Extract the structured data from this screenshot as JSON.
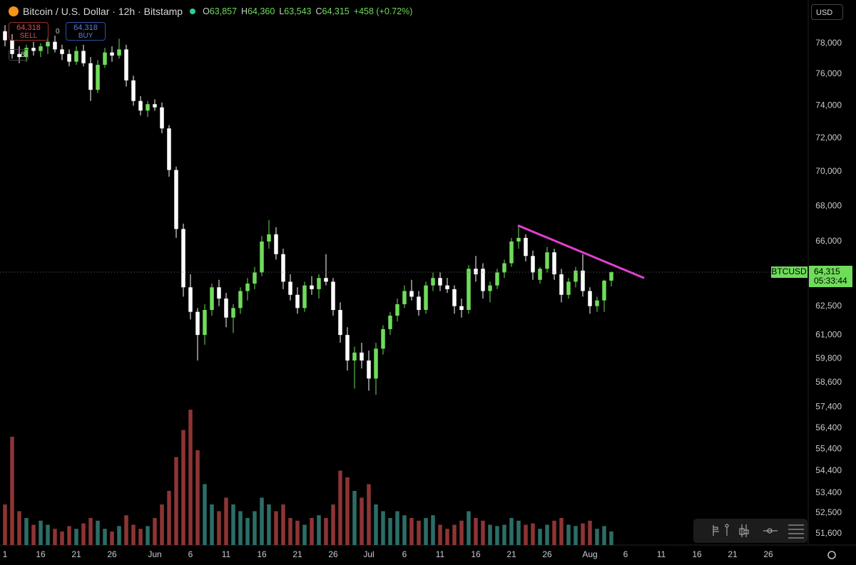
{
  "header": {
    "title": "Bitcoin / U.S. Dollar · 12h · Bitstamp",
    "ohlc": [
      {
        "key": "O",
        "value": "63,857"
      },
      {
        "key": "H",
        "value": "64,360"
      },
      {
        "key": "L",
        "value": "63,543"
      },
      {
        "key": "C",
        "value": "64,315"
      }
    ],
    "change": "+458 (+0.72%)",
    "sell": {
      "price": "64,318",
      "label": "SELL"
    },
    "spread": "0",
    "buy": {
      "price": "64,318",
      "label": "BUY"
    },
    "indicators": "8",
    "currency": "USD"
  },
  "chart_data": {
    "type": "candlestick",
    "log_scale": true,
    "grid": false,
    "up_color": "#6fdc5a",
    "down_color": "#ffffff",
    "volume_up_color": "#2c6e67",
    "volume_down_color": "#8e3434",
    "x": [
      11,
      12,
      13,
      14,
      15,
      16,
      17,
      18,
      19,
      20,
      21,
      22,
      23,
      24,
      25,
      26,
      27,
      28,
      29,
      30,
      31,
      32,
      33,
      34,
      35,
      36,
      37,
      38,
      39,
      40,
      41,
      42,
      43,
      44,
      45,
      46,
      47,
      48,
      49,
      50,
      51,
      52,
      53,
      54,
      55,
      56,
      57,
      58,
      59,
      60,
      61,
      62,
      63,
      64,
      65,
      66,
      67,
      68,
      69,
      70,
      71,
      72,
      73,
      74,
      75,
      76,
      77,
      78,
      79,
      80,
      81,
      82,
      83,
      84,
      85,
      86,
      87,
      88,
      89,
      90,
      91,
      92,
      93,
      94,
      95,
      96
    ],
    "open": [
      78800,
      78200,
      77300,
      77100,
      77700,
      77500,
      77800,
      78100,
      77600,
      77300,
      76800,
      77500,
      76700,
      75000,
      76600,
      77400,
      77200,
      77600,
      75600,
      74300,
      73700,
      74100,
      73900,
      72600,
      70100,
      66700,
      63500,
      62200,
      61000,
      62300,
      63500,
      62900,
      61900,
      62400,
      63300,
      63700,
      64300,
      66000,
      66400,
      65300,
      63800,
      63100,
      62400,
      63600,
      63400,
      64000,
      63800,
      62300,
      61000,
      59700,
      60100,
      59700,
      58800,
      60300,
      61300,
      62000,
      62600,
      63300,
      63000,
      62300,
      63600,
      64000,
      63600,
      63400,
      62500,
      62300,
      64500,
      64500,
      63300,
      63600,
      64300,
      64800,
      66000,
      66200,
      65200,
      63900,
      64500,
      65400,
      64200,
      63100,
      63800,
      64400,
      63300,
      62500,
      62800,
      63857
    ],
    "high": [
      79200,
      78600,
      77800,
      77900,
      78100,
      78000,
      78400,
      78500,
      77900,
      77600,
      77800,
      77900,
      77100,
      76900,
      77700,
      77800,
      78300,
      77900,
      75900,
      74600,
      74300,
      74400,
      74200,
      72800,
      70300,
      67000,
      64200,
      62400,
      62600,
      63700,
      63900,
      63200,
      62600,
      63500,
      64000,
      64600,
      66300,
      67200,
      66800,
      65600,
      64200,
      63500,
      63800,
      64100,
      64200,
      65300,
      64000,
      62700,
      61400,
      60400,
      60600,
      60200,
      60600,
      61500,
      62200,
      62900,
      63600,
      63900,
      63300,
      63800,
      64300,
      64300,
      64000,
      63600,
      62900,
      64700,
      65200,
      64800,
      63800,
      64500,
      65000,
      66200,
      66900,
      66400,
      65500,
      64600,
      65700,
      65600,
      64500,
      64000,
      64600,
      65300,
      63500,
      63000,
      63900,
      64360
    ],
    "low": [
      77800,
      77000,
      76700,
      76800,
      77200,
      77100,
      77300,
      77400,
      76900,
      76500,
      76600,
      76500,
      74300,
      74800,
      76400,
      76800,
      77000,
      75200,
      74000,
      73400,
      73300,
      73700,
      72300,
      69700,
      66200,
      63000,
      61800,
      59700,
      60500,
      62000,
      62500,
      61400,
      61100,
      62100,
      62800,
      63400,
      64100,
      65600,
      65000,
      63400,
      62800,
      62100,
      62200,
      63100,
      62900,
      63600,
      62000,
      60600,
      59200,
      58300,
      59300,
      58200,
      58000,
      60000,
      61000,
      61700,
      62400,
      62800,
      62000,
      62100,
      63300,
      63300,
      63200,
      62100,
      61900,
      62100,
      63800,
      62900,
      62700,
      63400,
      64000,
      64600,
      65600,
      64900,
      63900,
      63700,
      64300,
      63900,
      62700,
      62900,
      63500,
      63000,
      62100,
      62200,
      62200,
      63543
    ],
    "close": [
      78200,
      77300,
      77100,
      77700,
      77500,
      77800,
      78100,
      77600,
      77300,
      76800,
      77500,
      76700,
      75000,
      76600,
      77400,
      77200,
      77600,
      75600,
      74300,
      73700,
      74100,
      73900,
      72600,
      70100,
      66700,
      63500,
      62200,
      61000,
      62300,
      63500,
      62900,
      61900,
      62400,
      63300,
      63700,
      64300,
      66000,
      66400,
      65300,
      63800,
      63100,
      62400,
      63600,
      63400,
      64000,
      63800,
      62300,
      61000,
      59700,
      60100,
      59700,
      58800,
      60300,
      61300,
      62000,
      62600,
      63300,
      63000,
      62300,
      63600,
      64000,
      63600,
      63400,
      62500,
      62300,
      64500,
      64200,
      63300,
      63600,
      64300,
      64800,
      66000,
      66200,
      65200,
      64300,
      64500,
      65400,
      64200,
      63100,
      63800,
      64400,
      63300,
      62500,
      62800,
      63857,
      64315
    ],
    "volume": [
      30,
      80,
      25,
      20,
      15,
      18,
      15,
      12,
      10,
      14,
      12,
      16,
      20,
      18,
      12,
      10,
      14,
      22,
      15,
      12,
      14,
      20,
      30,
      40,
      65,
      85,
      100,
      70,
      45,
      30,
      25,
      35,
      30,
      25,
      20,
      25,
      35,
      30,
      25,
      30,
      20,
      18,
      15,
      20,
      22,
      20,
      30,
      55,
      50,
      40,
      35,
      45,
      30,
      25,
      20,
      25,
      22,
      20,
      18,
      20,
      22,
      15,
      12,
      15,
      18,
      25,
      20,
      18,
      15,
      14,
      15,
      20,
      18,
      15,
      16,
      12,
      15,
      18,
      20,
      15,
      14,
      16,
      18,
      12,
      14,
      10
    ],
    "xlim": [
      10.3,
      123.6
    ],
    "ylim": [
      51100,
      80900
    ],
    "xticks": [
      {
        "value": 11,
        "label": "1"
      },
      16,
      21,
      26,
      {
        "value": 32,
        "label": "Jun"
      },
      {
        "value": 37,
        "label": "6"
      },
      {
        "value": 42,
        "label": "11"
      },
      {
        "value": 47,
        "label": "16"
      },
      {
        "value": 52,
        "label": "21"
      },
      {
        "value": 57,
        "label": "26"
      },
      {
        "value": 62,
        "label": "Jul"
      },
      {
        "value": 67,
        "label": "6"
      },
      {
        "value": 72,
        "label": "11"
      },
      {
        "value": 77,
        "label": "16"
      },
      {
        "value": 82,
        "label": "21"
      },
      {
        "value": 87,
        "label": "26"
      },
      {
        "value": 93,
        "label": "Aug"
      },
      {
        "value": 98,
        "label": "6"
      },
      {
        "value": 103,
        "label": "11"
      },
      {
        "value": 108,
        "label": "16"
      },
      {
        "value": 113,
        "label": "21"
      },
      {
        "value": 118,
        "label": "26"
      }
    ],
    "yticks": [
      {
        "value": 78000,
        "label": "78,000"
      },
      {
        "value": 76000,
        "label": "76,000"
      },
      {
        "value": 74000,
        "label": "74,000"
      },
      {
        "value": 72000,
        "label": "72,000"
      },
      {
        "value": 70000,
        "label": "70,000"
      },
      {
        "value": 68000,
        "label": "68,000"
      },
      {
        "value": 66000,
        "label": "66,000"
      },
      {
        "value": 62500,
        "label": "62,500"
      },
      {
        "value": 61000,
        "label": "61,000"
      },
      {
        "value": 59800,
        "label": "59,800"
      },
      {
        "value": 58600,
        "label": "58,600"
      },
      {
        "value": 57400,
        "label": "57,400"
      },
      {
        "value": 56400,
        "label": "56,400"
      },
      {
        "value": 55400,
        "label": "55,400"
      },
      {
        "value": 54400,
        "label": "54,400"
      },
      {
        "value": 53400,
        "label": "53,400"
      },
      {
        "value": 52500,
        "label": "52,500"
      },
      {
        "value": 51600,
        "label": "51,600"
      }
    ],
    "trendline": {
      "color": "#e040d0",
      "x": [
        82.9,
        100.6
      ],
      "y": [
        66900,
        64000
      ]
    },
    "last_price": {
      "symbol": "BTCUSD",
      "price": {
        "value": 64315,
        "label": "64,315"
      },
      "countdown": "05:33:44",
      "color": "#6fdc5a"
    }
  }
}
